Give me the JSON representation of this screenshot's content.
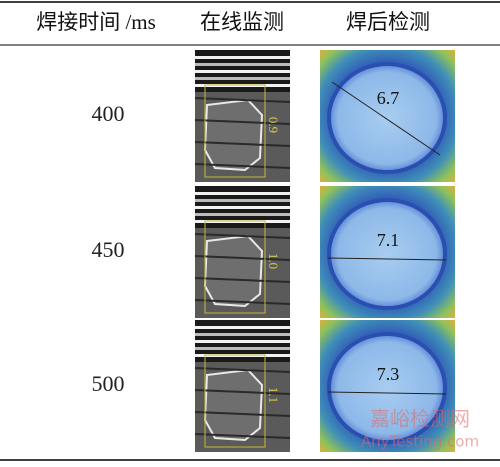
{
  "header": {
    "columns": [
      "焊接时间 /ms",
      "在线监测",
      "焊后检测"
    ]
  },
  "table": {
    "rows": [
      {
        "time": "400",
        "online_label": "0.9",
        "post_label": "6.7"
      },
      {
        "time": "450",
        "online_label": "1.0",
        "post_label": "7.1"
      },
      {
        "time": "500",
        "online_label": "1.1",
        "post_label": "7.3"
      }
    ]
  },
  "watermark": {
    "title": "嘉峪检测网",
    "url": "AnyTesting.com"
  }
}
